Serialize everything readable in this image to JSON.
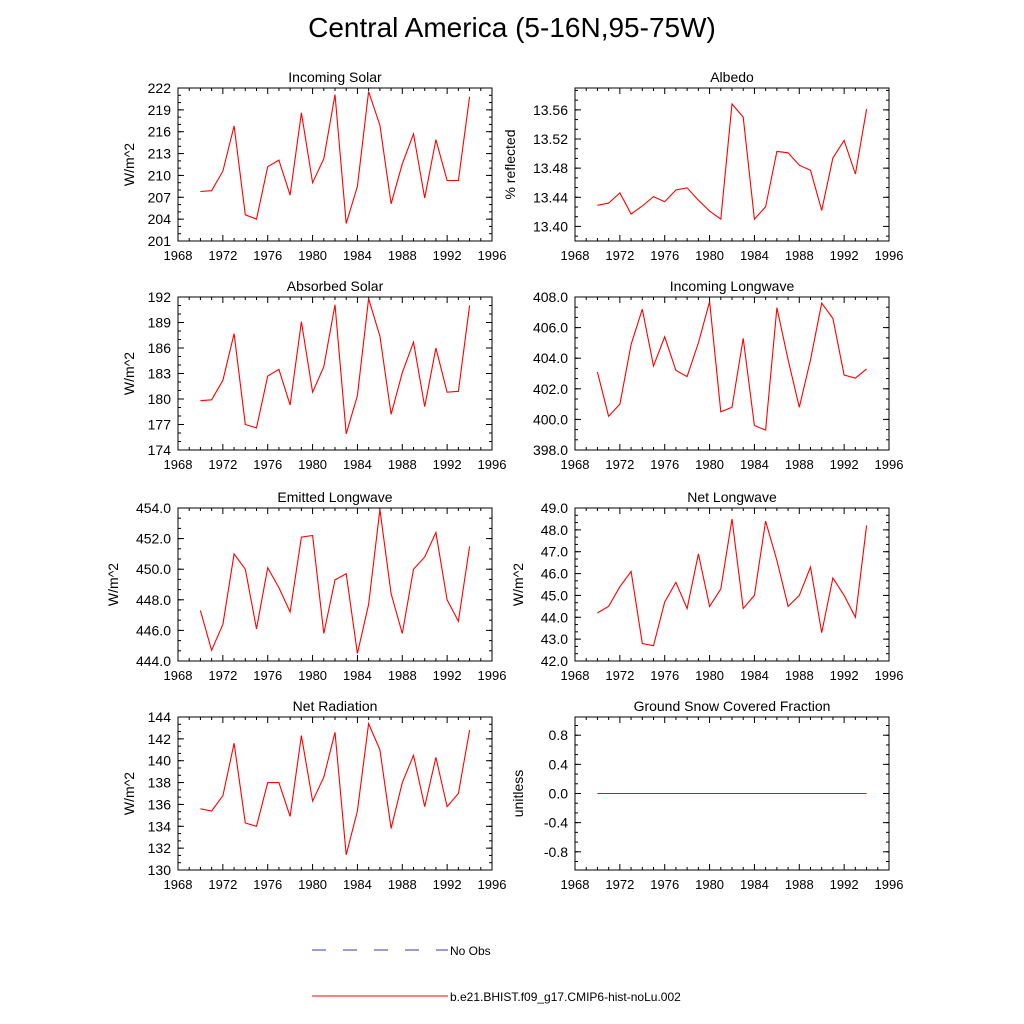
{
  "title": "Central America (5-16N,95-75W)",
  "colors": {
    "model": "#ff0000",
    "obs": "#3a3aa8",
    "axis": "#000000"
  },
  "legend": {
    "obs_label": "No Obs",
    "model_label": "b.e21.BHIST.f09_g17.CMIP6-hist-noLu.002"
  },
  "chart_data": [
    {
      "type": "line",
      "title": "Incoming Solar",
      "ylabel": "W/m^2",
      "xlim": [
        1968,
        1996
      ],
      "x_ticks": [
        "1968",
        "1972",
        "1976",
        "1980",
        "1984",
        "1988",
        "1992",
        "1996"
      ],
      "ylim": [
        201,
        222
      ],
      "y_ticks": [
        "201",
        "204",
        "207",
        "210",
        "213",
        "216",
        "219",
        "222"
      ],
      "series": [
        {
          "x": [
            1970,
            1971,
            1972,
            1973,
            1974,
            1975,
            1976,
            1977,
            1978,
            1979,
            1980,
            1981,
            1982,
            1983,
            1984,
            1985,
            1986,
            1987,
            1988,
            1989,
            1990,
            1991,
            1992,
            1993,
            1994
          ],
          "y": [
            207.8,
            207.9,
            210.6,
            216.8,
            204.6,
            204.0,
            211.2,
            212.1,
            207.3,
            218.6,
            209.0,
            212.3,
            221.1,
            203.4,
            208.5,
            221.5,
            216.9,
            206.1,
            211.6,
            215.7,
            206.9,
            214.9,
            209.3,
            209.3,
            220.8
          ]
        }
      ]
    },
    {
      "type": "line",
      "title": "Albedo",
      "ylabel": "% reflected",
      "xlim": [
        1968,
        1996
      ],
      "x_ticks": [
        "1968",
        "1972",
        "1976",
        "1980",
        "1984",
        "1988",
        "1992",
        "1996"
      ],
      "ylim": [
        13.38,
        13.59
      ],
      "y_ticks": [
        "13.40",
        "13.44",
        "13.48",
        "13.52",
        "13.56"
      ],
      "series": [
        {
          "x": [
            1970,
            1971,
            1972,
            1973,
            1974,
            1975,
            1976,
            1977,
            1978,
            1979,
            1980,
            1981,
            1982,
            1983,
            1984,
            1985,
            1986,
            1987,
            1988,
            1989,
            1990,
            1991,
            1992,
            1993,
            1994
          ],
          "y": [
            13.429,
            13.432,
            13.446,
            13.417,
            13.428,
            13.441,
            13.434,
            13.45,
            13.453,
            13.436,
            13.421,
            13.41,
            13.568,
            13.55,
            13.41,
            13.427,
            13.503,
            13.501,
            13.484,
            13.477,
            13.422,
            13.494,
            13.518,
            13.472,
            13.561
          ]
        }
      ]
    },
    {
      "type": "line",
      "title": "Absorbed Solar",
      "ylabel": "W/m^2",
      "xlim": [
        1968,
        1996
      ],
      "x_ticks": [
        "1968",
        "1972",
        "1976",
        "1980",
        "1984",
        "1988",
        "1992",
        "1996"
      ],
      "ylim": [
        174,
        192
      ],
      "y_ticks": [
        "174",
        "177",
        "180",
        "183",
        "186",
        "189",
        "192"
      ],
      "series": [
        {
          "x": [
            1970,
            1971,
            1972,
            1973,
            1974,
            1975,
            1976,
            1977,
            1978,
            1979,
            1980,
            1981,
            1982,
            1983,
            1984,
            1985,
            1986,
            1987,
            1988,
            1989,
            1990,
            1991,
            1992,
            1993,
            1994
          ],
          "y": [
            179.8,
            179.9,
            182.2,
            187.7,
            177.0,
            176.6,
            182.7,
            183.5,
            179.3,
            189.1,
            180.8,
            183.8,
            191.1,
            175.9,
            180.4,
            191.8,
            187.4,
            178.2,
            183.1,
            186.7,
            179.1,
            186.0,
            180.8,
            180.9,
            191.0
          ]
        }
      ]
    },
    {
      "type": "line",
      "title": "Incoming Longwave",
      "ylabel": "",
      "xlim": [
        1968,
        1996
      ],
      "x_ticks": [
        "1968",
        "1972",
        "1976",
        "1980",
        "1984",
        "1988",
        "1992",
        "1996"
      ],
      "ylim": [
        398,
        408
      ],
      "y_ticks": [
        "398.0",
        "400.0",
        "402.0",
        "404.0",
        "406.0",
        "408.0"
      ],
      "series": [
        {
          "x": [
            1970,
            1971,
            1972,
            1973,
            1974,
            1975,
            1976,
            1977,
            1978,
            1979,
            1980,
            1981,
            1982,
            1983,
            1984,
            1985,
            1986,
            1987,
            1988,
            1989,
            1990,
            1991,
            1992,
            1993,
            1994
          ],
          "y": [
            403.1,
            400.2,
            401.0,
            404.9,
            407.2,
            403.5,
            405.4,
            403.2,
            402.8,
            405.0,
            407.7,
            400.5,
            400.8,
            405.3,
            399.6,
            399.3,
            407.3,
            403.9,
            400.8,
            403.9,
            407.6,
            406.6,
            402.9,
            402.7,
            403.3
          ]
        }
      ]
    },
    {
      "type": "line",
      "title": "Emitted Longwave",
      "ylabel": "W/m^2",
      "xlim": [
        1968,
        1996
      ],
      "x_ticks": [
        "1968",
        "1972",
        "1976",
        "1980",
        "1984",
        "1988",
        "1992",
        "1996"
      ],
      "ylim": [
        444,
        454
      ],
      "y_ticks": [
        "444.0",
        "446.0",
        "448.0",
        "450.0",
        "452.0",
        "454.0"
      ],
      "series": [
        {
          "x": [
            1970,
            1971,
            1972,
            1973,
            1974,
            1975,
            1976,
            1977,
            1978,
            1979,
            1980,
            1981,
            1982,
            1983,
            1984,
            1985,
            1986,
            1987,
            1988,
            1989,
            1990,
            1991,
            1992,
            1993,
            1994
          ],
          "y": [
            447.3,
            444.7,
            446.4,
            451.0,
            450.0,
            446.1,
            450.1,
            448.8,
            447.2,
            452.1,
            452.2,
            445.8,
            449.3,
            449.7,
            444.5,
            447.7,
            453.9,
            448.4,
            445.8,
            450.0,
            450.8,
            452.4,
            448.0,
            446.6,
            451.5
          ]
        }
      ]
    },
    {
      "type": "line",
      "title": "Net Longwave",
      "ylabel": "W/m^2",
      "xlim": [
        1968,
        1996
      ],
      "x_ticks": [
        "1968",
        "1972",
        "1976",
        "1980",
        "1984",
        "1988",
        "1992",
        "1996"
      ],
      "ylim": [
        42,
        49
      ],
      "y_ticks": [
        "42.0",
        "43.0",
        "44.0",
        "45.0",
        "46.0",
        "47.0",
        "48.0",
        "49.0"
      ],
      "series": [
        {
          "x": [
            1970,
            1971,
            1972,
            1973,
            1974,
            1975,
            1976,
            1977,
            1978,
            1979,
            1980,
            1981,
            1982,
            1983,
            1984,
            1985,
            1986,
            1987,
            1988,
            1989,
            1990,
            1991,
            1992,
            1993,
            1994
          ],
          "y": [
            44.2,
            44.5,
            45.4,
            46.1,
            42.8,
            42.7,
            44.7,
            45.6,
            44.4,
            46.9,
            44.5,
            45.3,
            48.5,
            44.4,
            45.0,
            48.4,
            46.6,
            44.5,
            45.0,
            46.3,
            43.3,
            45.8,
            45.0,
            44.0,
            48.2
          ]
        }
      ]
    },
    {
      "type": "line",
      "title": "Net Radiation",
      "ylabel": "W/m^2",
      "xlim": [
        1968,
        1996
      ],
      "x_ticks": [
        "1968",
        "1972",
        "1976",
        "1980",
        "1984",
        "1988",
        "1992",
        "1996"
      ],
      "ylim": [
        130,
        144
      ],
      "y_ticks": [
        "130",
        "132",
        "134",
        "136",
        "138",
        "140",
        "142",
        "144"
      ],
      "series": [
        {
          "x": [
            1970,
            1971,
            1972,
            1973,
            1974,
            1975,
            1976,
            1977,
            1978,
            1979,
            1980,
            1981,
            1982,
            1983,
            1984,
            1985,
            1986,
            1987,
            1988,
            1989,
            1990,
            1991,
            1992,
            1993,
            1994
          ],
          "y": [
            135.6,
            135.4,
            136.8,
            141.6,
            134.3,
            134.0,
            138.0,
            138.0,
            134.9,
            142.3,
            136.3,
            138.5,
            142.6,
            131.4,
            135.4,
            143.4,
            141.0,
            133.8,
            138.0,
            140.5,
            135.8,
            140.3,
            135.8,
            137.0,
            142.8
          ]
        }
      ]
    },
    {
      "type": "line",
      "title": "Ground Snow Covered Fraction",
      "ylabel": "unitless",
      "xlim": [
        1968,
        1996
      ],
      "x_ticks": [
        "1968",
        "1972",
        "1976",
        "1980",
        "1984",
        "1988",
        "1992",
        "1996"
      ],
      "ylim": [
        -1.05,
        1.05
      ],
      "y_ticks": [
        "-0.8",
        "-0.4",
        "0.0",
        "0.4",
        "0.8"
      ],
      "series": [
        {
          "x": [
            1970,
            1994
          ],
          "y": [
            0.0,
            0.0
          ]
        }
      ]
    }
  ]
}
